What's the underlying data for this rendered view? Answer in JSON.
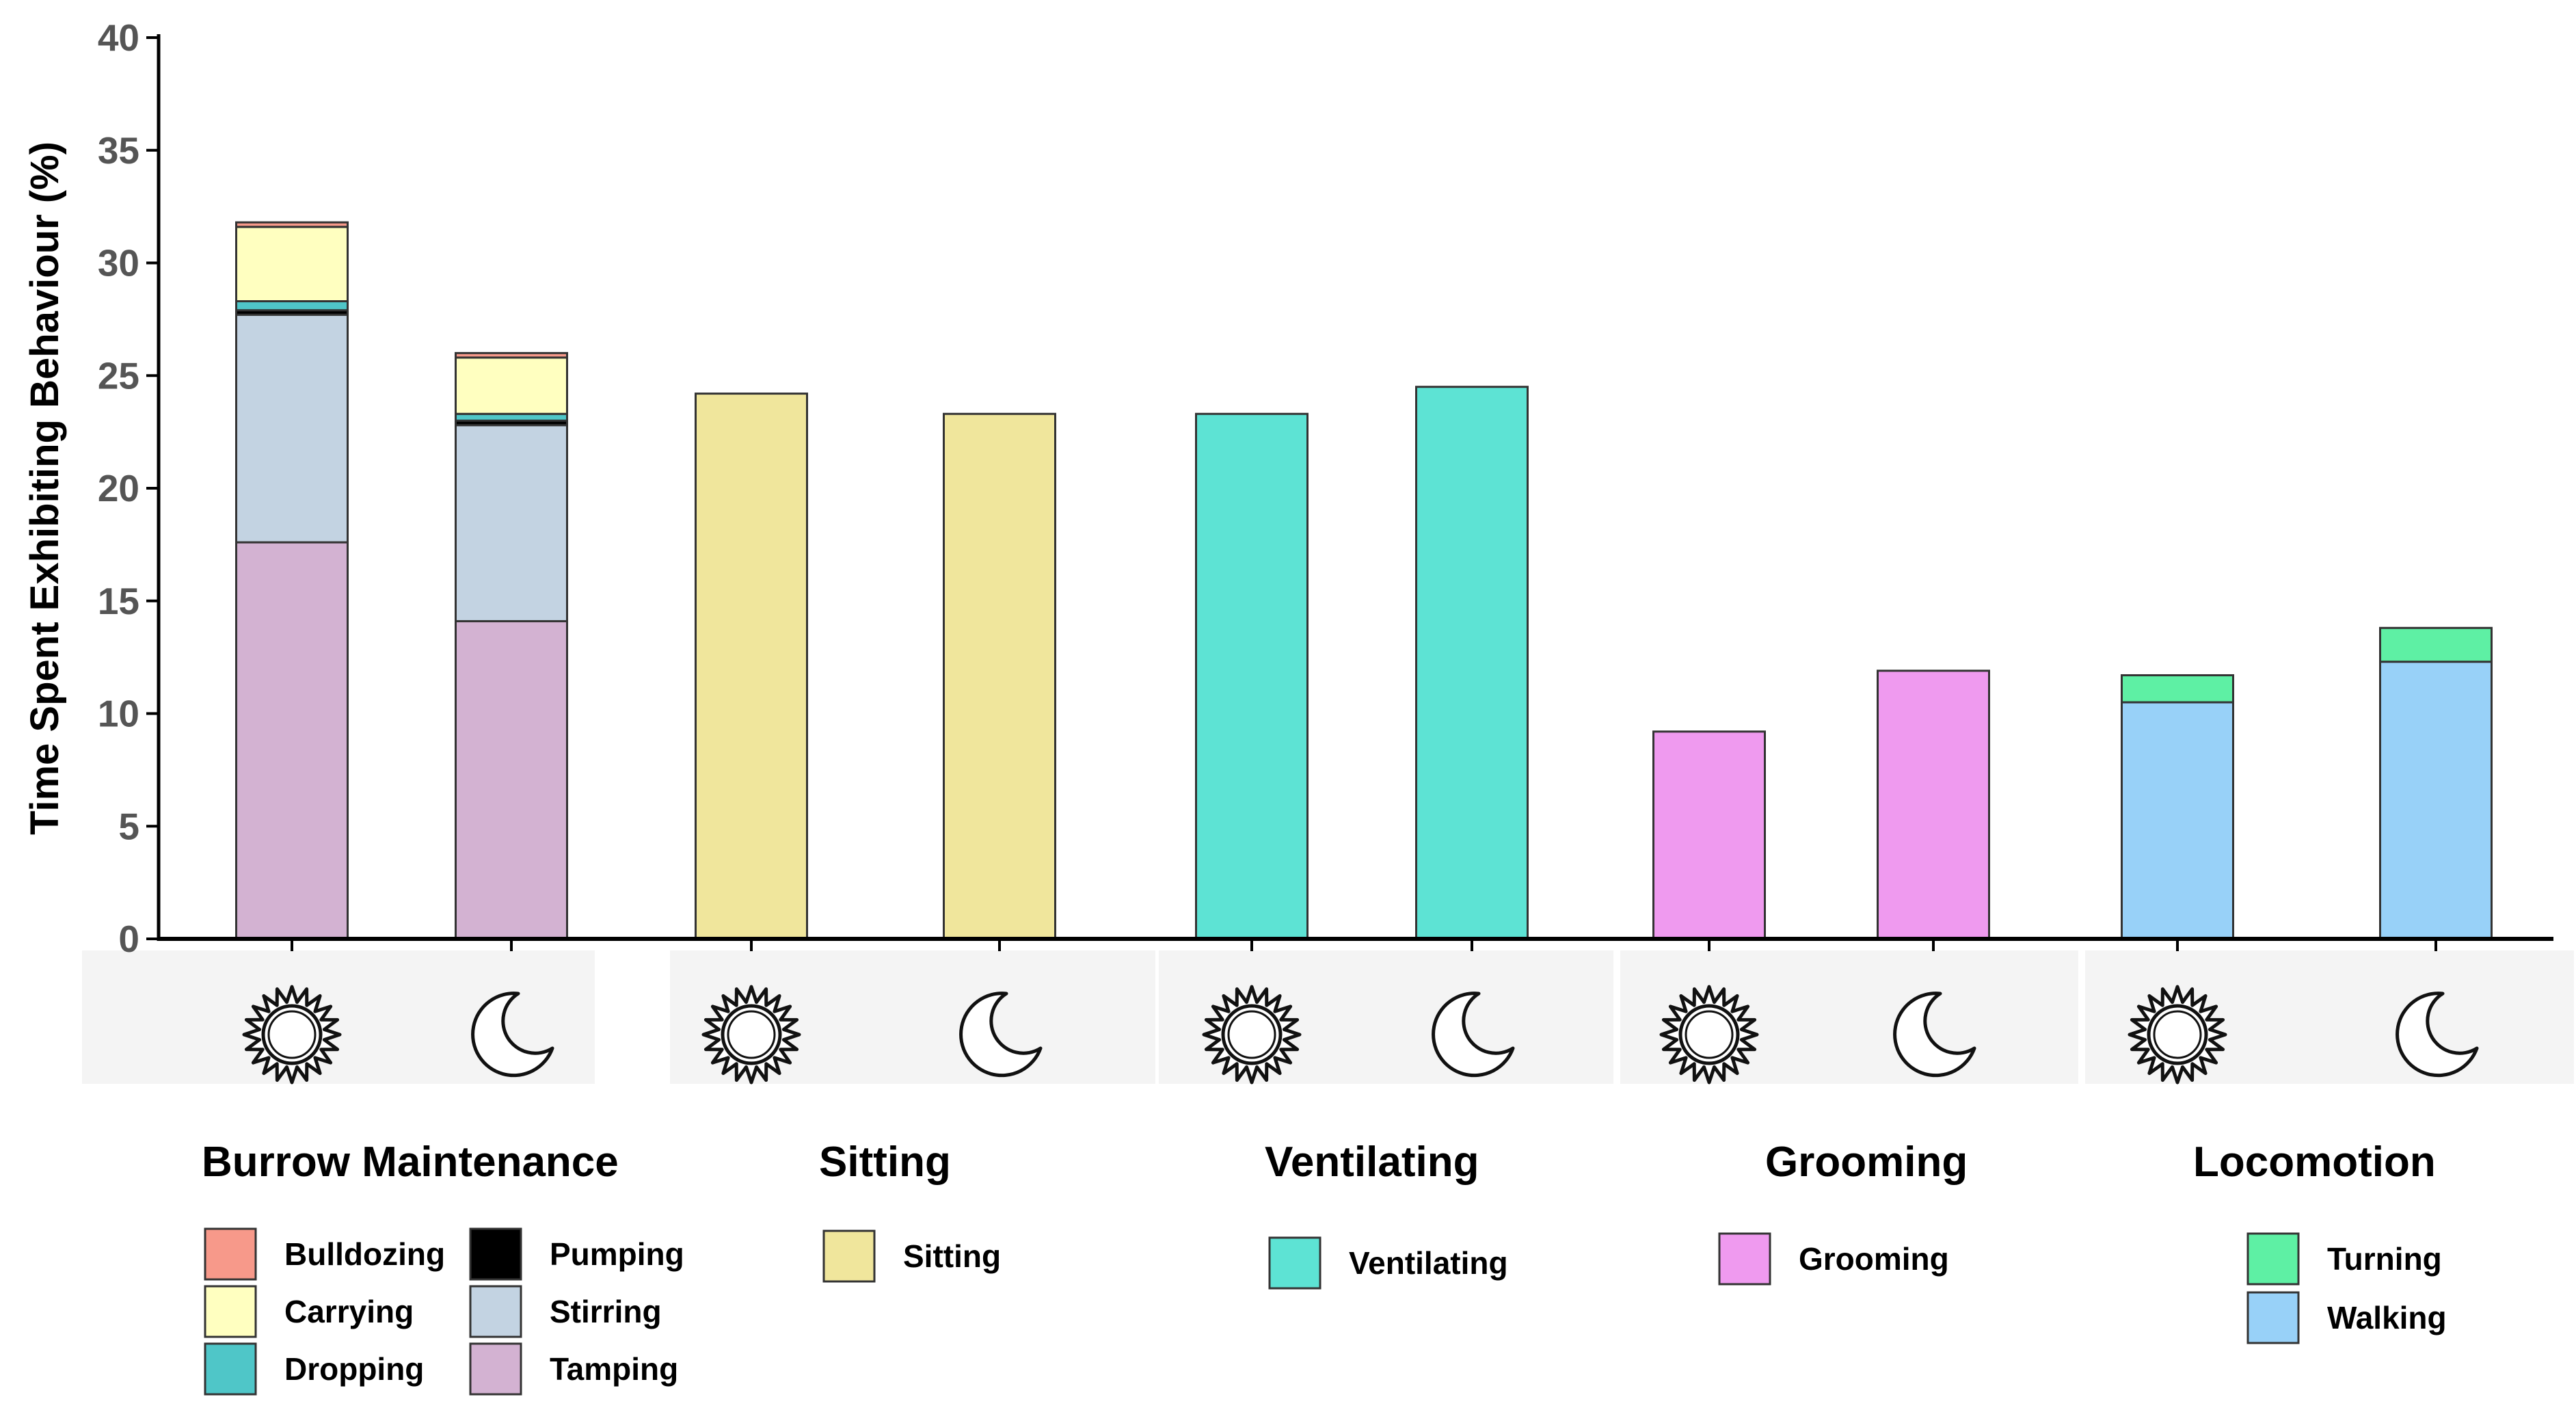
{
  "chart_data": {
    "type": "bar",
    "stacked": true,
    "ylabel": "Time Spent Exhibiting Behaviour (%)",
    "ylim": [
      0,
      40
    ],
    "yticks": [
      0,
      5,
      10,
      15,
      20,
      25,
      30,
      35,
      40
    ],
    "grid": false,
    "x_markers": [
      "sun-icon",
      "moon-icon",
      "sun-icon",
      "moon-icon",
      "sun-icon",
      "moon-icon",
      "sun-icon",
      "moon-icon",
      "sun-icon",
      "moon-icon"
    ],
    "categories": [
      "Burrow Maintenance",
      "Sitting",
      "Ventilating",
      "Grooming",
      "Locomotion"
    ],
    "colors": {
      "Bulldozing": "#f7998a",
      "Pumping": "#000000",
      "Carrying": "#ffffc0",
      "Stirring": "#c3d3e2",
      "Dropping": "#4fc6c8",
      "Tamping": "#d3b2d2",
      "Sitting": "#f0e69c",
      "Ventilating": "#5de3d4",
      "Grooming": "#ef9aef",
      "Turning": "#5ef0a4",
      "Walking": "#98d1f8"
    },
    "bars": [
      {
        "group": "Burrow Maintenance",
        "period": "sun-icon",
        "segments": [
          {
            "name": "Tamping",
            "value": 17.6
          },
          {
            "name": "Stirring",
            "value": 10.1
          },
          {
            "name": "Pumping",
            "value": 0.2
          },
          {
            "name": "Dropping",
            "value": 0.4
          },
          {
            "name": "Carrying",
            "value": 3.3
          },
          {
            "name": "Bulldozing",
            "value": 0.2
          }
        ]
      },
      {
        "group": "Burrow Maintenance",
        "period": "moon-icon",
        "segments": [
          {
            "name": "Tamping",
            "value": 14.1
          },
          {
            "name": "Stirring",
            "value": 8.7
          },
          {
            "name": "Pumping",
            "value": 0.2
          },
          {
            "name": "Dropping",
            "value": 0.3
          },
          {
            "name": "Carrying",
            "value": 2.5
          },
          {
            "name": "Bulldozing",
            "value": 0.2
          }
        ]
      },
      {
        "group": "Sitting",
        "period": "sun-icon",
        "segments": [
          {
            "name": "Sitting",
            "value": 24.2
          }
        ]
      },
      {
        "group": "Sitting",
        "period": "moon-icon",
        "segments": [
          {
            "name": "Sitting",
            "value": 23.3
          }
        ]
      },
      {
        "group": "Ventilating",
        "period": "sun-icon",
        "segments": [
          {
            "name": "Ventilating",
            "value": 23.3
          }
        ]
      },
      {
        "group": "Ventilating",
        "period": "moon-icon",
        "segments": [
          {
            "name": "Ventilating",
            "value": 24.5
          }
        ]
      },
      {
        "group": "Grooming",
        "period": "sun-icon",
        "segments": [
          {
            "name": "Grooming",
            "value": 9.2
          }
        ]
      },
      {
        "group": "Grooming",
        "period": "moon-icon",
        "segments": [
          {
            "name": "Grooming",
            "value": 11.9
          }
        ]
      },
      {
        "group": "Locomotion",
        "period": "sun-icon",
        "segments": [
          {
            "name": "Walking",
            "value": 10.5
          },
          {
            "name": "Turning",
            "value": 1.2
          }
        ]
      },
      {
        "group": "Locomotion",
        "period": "moon-icon",
        "segments": [
          {
            "name": "Walking",
            "value": 12.3
          },
          {
            "name": "Turning",
            "value": 1.5
          }
        ]
      }
    ],
    "legend": [
      {
        "group": "Burrow Maintenance",
        "items": [
          "Bulldozing",
          "Pumping",
          "Carrying",
          "Stirring",
          "Dropping",
          "Tamping"
        ]
      },
      {
        "group": "Sitting",
        "items": [
          "Sitting"
        ]
      },
      {
        "group": "Ventilating",
        "items": [
          "Ventilating"
        ]
      },
      {
        "group": "Grooming",
        "items": [
          "Grooming"
        ]
      },
      {
        "group": "Locomotion",
        "items": [
          "Turning",
          "Walking"
        ]
      }
    ]
  }
}
